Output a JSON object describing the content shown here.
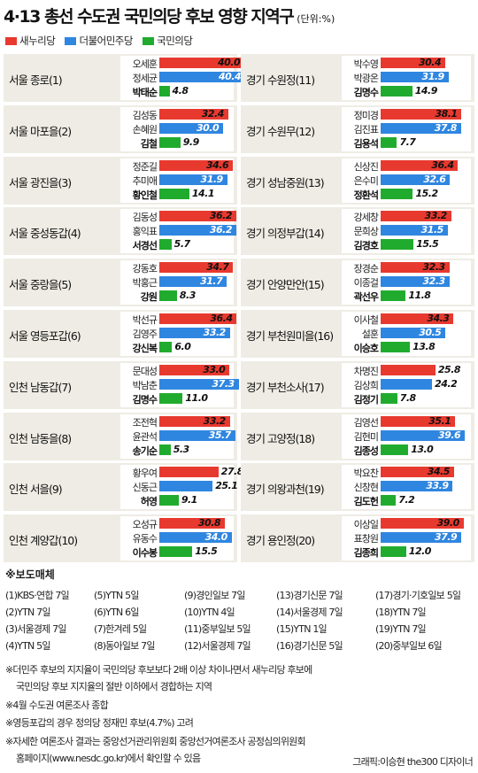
{
  "title": "4·13 총선 수도권 국민의당 후보 영향 지역구",
  "unit": "(단위:%)",
  "colors": {
    "saenuri": "#e8392f",
    "minjoo": "#2f86e0",
    "peoples": "#21ab2e"
  },
  "chart_data": {
    "type": "bar",
    "orientation": "horizontal",
    "title": "4·13 총선 수도권 국민의당 후보 영향 지역구",
    "unit": "(단위:%)",
    "legend": [
      "새누리당",
      "더불어민주당",
      "국민의당"
    ],
    "legend_placement": "top-left",
    "xlim": [
      0,
      40
    ],
    "districts": [
      {
        "name": "서울 종로(1)",
        "candidates": [
          {
            "name": "오세훈",
            "party": "새누리당",
            "value": 40.0
          },
          {
            "name": "정세균",
            "party": "더불어민주당",
            "value": 40.4
          },
          {
            "name": "박태순",
            "party": "국민의당",
            "value": 4.8
          }
        ]
      },
      {
        "name": "서울 마포을(2)",
        "candidates": [
          {
            "name": "김성동",
            "party": "새누리당",
            "value": 32.4
          },
          {
            "name": "손혜원",
            "party": "더불어민주당",
            "value": 30.0
          },
          {
            "name": "김철",
            "party": "국민의당",
            "value": 9.9
          }
        ]
      },
      {
        "name": "서울 광진을(3)",
        "candidates": [
          {
            "name": "정준길",
            "party": "새누리당",
            "value": 34.6
          },
          {
            "name": "추미애",
            "party": "더불어민주당",
            "value": 31.9
          },
          {
            "name": "황인철",
            "party": "국민의당",
            "value": 14.1
          }
        ]
      },
      {
        "name": "서울 중성동갑(4)",
        "candidates": [
          {
            "name": "김동성",
            "party": "새누리당",
            "value": 36.2
          },
          {
            "name": "홍익표",
            "party": "더불어민주당",
            "value": 36.2
          },
          {
            "name": "서경선",
            "party": "국민의당",
            "value": 5.7
          }
        ]
      },
      {
        "name": "서울 중랑을(5)",
        "candidates": [
          {
            "name": "강동호",
            "party": "새누리당",
            "value": 34.7
          },
          {
            "name": "박홍근",
            "party": "더불어민주당",
            "value": 31.7
          },
          {
            "name": "강원",
            "party": "국민의당",
            "value": 8.3
          }
        ]
      },
      {
        "name": "서울 영등포갑(6)",
        "candidates": [
          {
            "name": "박선규",
            "party": "새누리당",
            "value": 36.4
          },
          {
            "name": "김영주",
            "party": "더불어민주당",
            "value": 33.2
          },
          {
            "name": "강신복",
            "party": "국민의당",
            "value": 6.0
          }
        ]
      },
      {
        "name": "인천 남동갑(7)",
        "candidates": [
          {
            "name": "문대성",
            "party": "새누리당",
            "value": 33.0
          },
          {
            "name": "박남춘",
            "party": "더불어민주당",
            "value": 37.3
          },
          {
            "name": "김명수",
            "party": "국민의당",
            "value": 11.0
          }
        ]
      },
      {
        "name": "인천 남동을(8)",
        "candidates": [
          {
            "name": "조전혁",
            "party": "새누리당",
            "value": 33.2
          },
          {
            "name": "윤관석",
            "party": "더불어민주당",
            "value": 35.7
          },
          {
            "name": "송기순",
            "party": "국민의당",
            "value": 5.3
          }
        ]
      },
      {
        "name": "인천 서을(9)",
        "candidates": [
          {
            "name": "황우여",
            "party": "새누리당",
            "value": 27.8
          },
          {
            "name": "신동근",
            "party": "더불어민주당",
            "value": 25.1
          },
          {
            "name": "허영",
            "party": "국민의당",
            "value": 9.1
          }
        ]
      },
      {
        "name": "인천 계양갑(10)",
        "candidates": [
          {
            "name": "오성규",
            "party": "새누리당",
            "value": 30.8
          },
          {
            "name": "유동수",
            "party": "더불어민주당",
            "value": 34.0
          },
          {
            "name": "이수봉",
            "party": "국민의당",
            "value": 15.5
          }
        ]
      },
      {
        "name": "경기 수원정(11)",
        "candidates": [
          {
            "name": "박수영",
            "party": "새누리당",
            "value": 30.4
          },
          {
            "name": "박광온",
            "party": "더불어민주당",
            "value": 31.9
          },
          {
            "name": "김명수",
            "party": "국민의당",
            "value": 14.9
          }
        ]
      },
      {
        "name": "경기 수원무(12)",
        "candidates": [
          {
            "name": "정미경",
            "party": "새누리당",
            "value": 38.1
          },
          {
            "name": "김진표",
            "party": "더불어민주당",
            "value": 37.8
          },
          {
            "name": "김용석",
            "party": "국민의당",
            "value": 7.7
          }
        ]
      },
      {
        "name": "경기 성남중원(13)",
        "candidates": [
          {
            "name": "신상진",
            "party": "새누리당",
            "value": 36.4
          },
          {
            "name": "은수미",
            "party": "더불어민주당",
            "value": 32.6
          },
          {
            "name": "정환석",
            "party": "국민의당",
            "value": 15.2
          }
        ]
      },
      {
        "name": "경기 의정부갑(14)",
        "candidates": [
          {
            "name": "강세창",
            "party": "새누리당",
            "value": 33.2
          },
          {
            "name": "문희상",
            "party": "더불어민주당",
            "value": 31.5
          },
          {
            "name": "김경호",
            "party": "국민의당",
            "value": 15.5
          }
        ]
      },
      {
        "name": "경기 안양만안(15)",
        "candidates": [
          {
            "name": "장경순",
            "party": "새누리당",
            "value": 32.3
          },
          {
            "name": "이종걸",
            "party": "더불어민주당",
            "value": 32.3
          },
          {
            "name": "곽선우",
            "party": "국민의당",
            "value": 11.8
          }
        ]
      },
      {
        "name": "경기 부천원미을(16)",
        "candidates": [
          {
            "name": "이사철",
            "party": "새누리당",
            "value": 34.3
          },
          {
            "name": "설훈",
            "party": "더불어민주당",
            "value": 30.5
          },
          {
            "name": "이승호",
            "party": "국민의당",
            "value": 13.8
          }
        ]
      },
      {
        "name": "경기 부천소사(17)",
        "candidates": [
          {
            "name": "차명진",
            "party": "새누리당",
            "value": 25.8
          },
          {
            "name": "김상희",
            "party": "더불어민주당",
            "value": 24.2
          },
          {
            "name": "김정기",
            "party": "국민의당",
            "value": 7.8
          }
        ]
      },
      {
        "name": "경기 고양정(18)",
        "candidates": [
          {
            "name": "김영선",
            "party": "새누리당",
            "value": 35.1
          },
          {
            "name": "김현미",
            "party": "더불어민주당",
            "value": 39.6
          },
          {
            "name": "김종성",
            "party": "국민의당",
            "value": 13.0
          }
        ]
      },
      {
        "name": "경기 의왕과천(19)",
        "candidates": [
          {
            "name": "박요찬",
            "party": "새누리당",
            "value": 34.5
          },
          {
            "name": "신창현",
            "party": "더불어민주당",
            "value": 33.9
          },
          {
            "name": "김도헌",
            "party": "국민의당",
            "value": 7.2
          }
        ]
      },
      {
        "name": "경기 용인정(20)",
        "candidates": [
          {
            "name": "이상일",
            "party": "새누리당",
            "value": 39.0
          },
          {
            "name": "표창원",
            "party": "더불어민주당",
            "value": 37.9
          },
          {
            "name": "김종희",
            "party": "국민의당",
            "value": 12.0
          }
        ]
      }
    ]
  },
  "media": {
    "title": "※보도매체",
    "columns": [
      [
        "(1)KBS·연합 7일",
        "(2)YTN 7일",
        "(3)서울경제 7일",
        "(4)YTN 5일"
      ],
      [
        "(5)YTN 5일",
        "(6)YTN 6일",
        "(7)한겨레 5일",
        "(8)동아일보 7일"
      ],
      [
        "(9)경인일보 7일",
        "(10)YTN 4일",
        "(11)중부일보 5일",
        "(12)서울경제 7일"
      ],
      [
        "(13)경기신문 7일",
        "(14)서울경제 7일",
        "(15)YTN 1일",
        "(16)경기신문 5일"
      ],
      [
        "(17)경기·기호일보 5일",
        "(18)YTN 7일",
        "(19)YTN 7일",
        "(20)중부일보 6일"
      ]
    ]
  },
  "notes": [
    "※더민주 후보의 지지율이 국민의당 후보보다 2배 이상 차이나면서 새누리당 후보에",
    "국민의당 후보 지지율의 절반 이하에서 경합하는 지역",
    "※4월 수도권 여론조사 종합",
    "※영등포갑의 경우 정의당 정재민 후보(4.7%) 고려",
    "※자세한 여론조사 결과는 중앙선거관리위원회 중앙선거여론조사 공정심의위원회",
    "홈페이지(www.nesdc.go.kr)에서 확인할 수 있음"
  ],
  "credit": "그래픽:이승현 the300 디자이너"
}
